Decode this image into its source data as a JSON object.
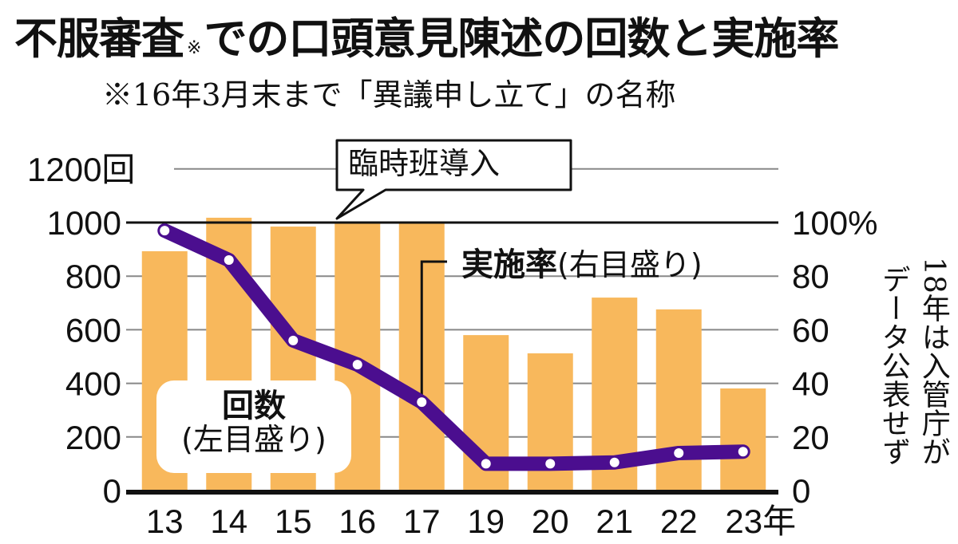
{
  "title": {
    "main_before": "不服審査",
    "note_mark": "※",
    "main_after": "での口頭意見陳述の回数と実施率",
    "subtitle": "※16年3月末まで「異議申し立て」の名称"
  },
  "annotations": {
    "callout": "臨時班導入",
    "rate_label_bold": "実施率",
    "rate_label_note": "(右目盛り)",
    "count_label_bold": "回数",
    "count_label_note": "(左目盛り)",
    "side_note_col1": "18年は入管庁が",
    "side_note_col2": "データ公表せず"
  },
  "colors": {
    "bar": "#F8B85C",
    "line": "#4B0E8F",
    "marker_fill": "#ffffff",
    "grid": "#888888",
    "axis": "#111111"
  },
  "axes": {
    "left_ticks": [
      "0",
      "200",
      "400",
      "600",
      "800",
      "1000",
      "1200回"
    ],
    "right_ticks": [
      "0",
      "20",
      "40",
      "60",
      "80",
      "100%"
    ],
    "x_ticks": [
      "13",
      "14",
      "15",
      "16",
      "17",
      "19",
      "20",
      "21",
      "22",
      "23年"
    ]
  },
  "chart_data": {
    "type": "bar",
    "title": "不服審査※での口頭意見陳述の回数と実施率",
    "subtitle": "※16年3月末まで「異議申し立て」の名称",
    "categories": [
      "13",
      "14",
      "15",
      "16",
      "17",
      "19",
      "20",
      "21",
      "22",
      "23"
    ],
    "xlabel": "年",
    "series": [
      {
        "name": "回数(左目盛り)",
        "type": "bar",
        "axis": "left",
        "unit": "回",
        "values": [
          893,
          1018,
          985,
          1000,
          1000,
          580,
          512,
          720,
          676,
          381
        ]
      },
      {
        "name": "実施率(右目盛り)",
        "type": "line",
        "axis": "right",
        "unit": "%",
        "values": [
          97,
          86,
          56,
          47,
          33,
          10,
          10,
          10.5,
          14,
          14.5
        ]
      }
    ],
    "ylim_left": [
      0,
      1200
    ],
    "ylim_right": [
      0,
      100
    ],
    "ylabel_left": "回",
    "ylabel_right": "%",
    "grid": true,
    "annotations": [
      "臨時班導入",
      "18年は入管庁がデータ公表せず"
    ]
  }
}
